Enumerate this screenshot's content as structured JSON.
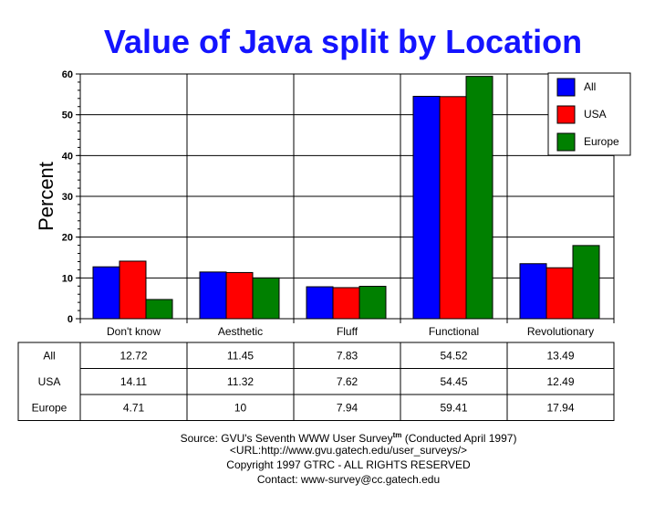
{
  "chart_data": {
    "type": "bar",
    "title": "Value of Java split by Location",
    "ylabel": "Percent",
    "xlabel": "",
    "ylim": [
      0,
      60
    ],
    "yticks": [
      0,
      10,
      20,
      30,
      40,
      50,
      60
    ],
    "grid": true,
    "legend_position": "top-right",
    "categories": [
      "Don't know",
      "Aesthetic",
      "Fluff",
      "Functional",
      "Revolutionary"
    ],
    "series": [
      {
        "name": "All",
        "color": "#0000ff",
        "values": [
          12.72,
          11.45,
          7.83,
          54.52,
          13.49
        ],
        "labels": [
          "12.72",
          "11.45",
          "7.83",
          "54.52",
          "13.49"
        ]
      },
      {
        "name": "USA",
        "color": "#ff0000",
        "values": [
          14.11,
          11.32,
          7.62,
          54.45,
          12.49
        ],
        "labels": [
          "14.11",
          "11.32",
          "7.62",
          "54.45",
          "12.49"
        ]
      },
      {
        "name": "Europe",
        "color": "#008000",
        "values": [
          4.71,
          10,
          7.94,
          59.41,
          17.94
        ],
        "labels": [
          "4.71",
          "10",
          "7.94",
          "59.41",
          "17.94"
        ]
      }
    ]
  },
  "footer": {
    "source": "Source: GVU's Seventh WWW User Survey",
    "tm": "tm",
    "conducted": " (Conducted April 1997)",
    "url": "<URL:http://www.gvu.gatech.edu/user_surveys/>",
    "copyright": "Copyright 1997 GTRC - ALL RIGHTS RESERVED",
    "contact": "Contact: www-survey@cc.gatech.edu"
  }
}
